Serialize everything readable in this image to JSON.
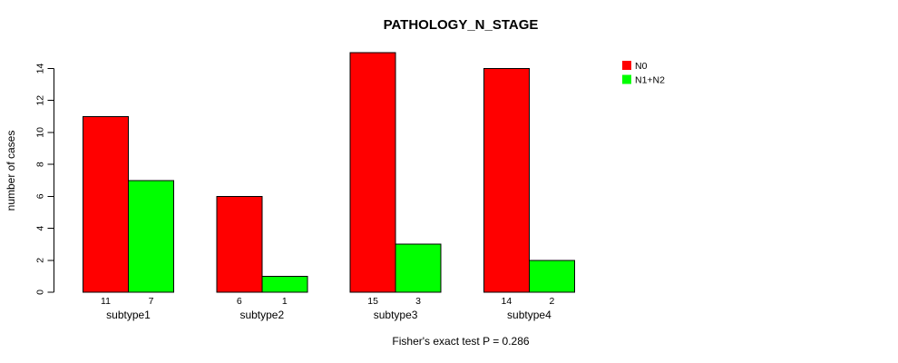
{
  "chart_data": {
    "type": "bar",
    "title": "PATHOLOGY_N_STAGE",
    "ylabel": "number of cases",
    "xlabel": "",
    "footnote": "Fisher's exact test P = 0.286",
    "categories": [
      "subtype1",
      "subtype2",
      "subtype3",
      "subtype4"
    ],
    "series": [
      {
        "name": "N0",
        "color": "#FF0000",
        "values": [
          11,
          6,
          15,
          14
        ]
      },
      {
        "name": "N1+N2",
        "color": "#00FF00",
        "values": [
          7,
          1,
          3,
          2
        ]
      }
    ],
    "bar_value_labels_shown": true,
    "y_ticks": [
      0,
      2,
      4,
      6,
      8,
      10,
      12,
      14
    ],
    "ylim": [
      0,
      15
    ],
    "grid": false,
    "legend": {
      "position": "top-right",
      "entries": [
        "N0",
        "N1+N2"
      ]
    },
    "style": {
      "background": "#FFFFFF",
      "bar_border_color": "#000000",
      "axis_color": "#000000",
      "text_color": "#000000"
    }
  }
}
